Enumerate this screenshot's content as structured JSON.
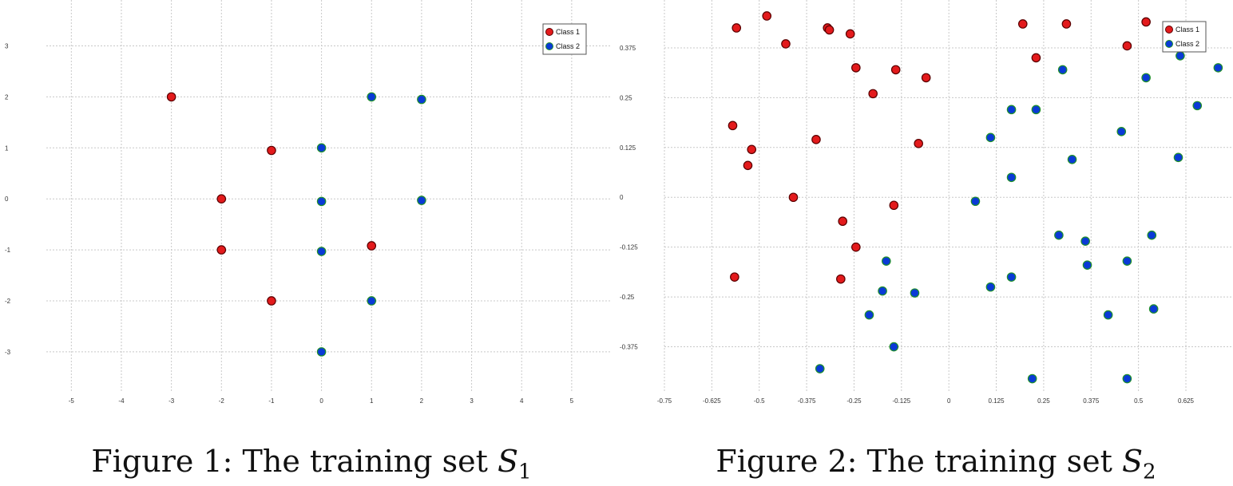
{
  "chart_data": [
    {
      "type": "scatter",
      "title": "",
      "xlabel": "",
      "ylabel": "",
      "xlim": [
        -5.5,
        5.8
      ],
      "ylim": [
        -3.8,
        3.9
      ],
      "xticks": [
        -5,
        -4,
        -3,
        -2,
        -1,
        0,
        1,
        2,
        3,
        4,
        5
      ],
      "yticks": [
        -3,
        -2,
        -1,
        0,
        1,
        2,
        3
      ],
      "xtick_labels": [
        "-5",
        "-4",
        "-3",
        "-2",
        "-1",
        "0",
        "1",
        "2",
        "3",
        "4",
        "5"
      ],
      "ytick_labels": [
        "-3",
        "-2",
        "-1",
        "0",
        "1",
        "2",
        "3"
      ],
      "grid": true,
      "legend_position": "top-right",
      "series": [
        {
          "name": "Class 1",
          "color": "#e31a1c",
          "points": [
            [
              -3,
              2
            ],
            [
              -1,
              0.95
            ],
            [
              -2,
              0
            ],
            [
              -2,
              -1
            ],
            [
              1,
              -0.92
            ],
            [
              -1,
              -2
            ]
          ]
        },
        {
          "name": "Class 2",
          "color": "#0a3ad6",
          "points": [
            [
              1,
              2
            ],
            [
              2,
              1.95
            ],
            [
              0,
              1
            ],
            [
              0,
              -0.05
            ],
            [
              2,
              -0.03
            ],
            [
              0,
              -1.03
            ],
            [
              1,
              -2
            ],
            [
              0,
              -3
            ]
          ]
        }
      ]
    },
    {
      "type": "scatter",
      "title": "",
      "xlabel": "",
      "ylabel": "",
      "xlim": [
        -0.75,
        0.745
      ],
      "ylim": [
        -0.49,
        0.495
      ],
      "xticks": [
        -0.75,
        -0.625,
        -0.5,
        -0.375,
        -0.25,
        -0.125,
        0,
        0.125,
        0.25,
        0.375,
        0.5,
        0.625
      ],
      "yticks": [
        -0.375,
        -0.25,
        -0.125,
        0,
        0.125,
        0.25,
        0.375
      ],
      "xtick_labels": [
        "-0.75",
        "-0.625",
        "-0.5",
        "-0.375",
        "-0.25",
        "-0.125",
        "0",
        "0.125",
        "0.25",
        "0.375",
        "0.5",
        "0.625"
      ],
      "ytick_labels": [
        "-0.375",
        "-0.25",
        "-0.125",
        "0",
        "0.125",
        "0.25",
        "0.375"
      ],
      "grid": true,
      "legend_position": "top-right",
      "series": [
        {
          "name": "Class 1",
          "color": "#e31a1c",
          "points": [
            [
              -0.56,
              0.425
            ],
            [
              -0.48,
              0.455
            ],
            [
              -0.43,
              0.385
            ],
            [
              -0.32,
              0.425
            ],
            [
              -0.315,
              0.42
            ],
            [
              -0.26,
              0.41
            ],
            [
              -0.245,
              0.325
            ],
            [
              -0.2,
              0.26
            ],
            [
              -0.14,
              0.32
            ],
            [
              -0.06,
              0.3
            ],
            [
              -0.57,
              0.18
            ],
            [
              -0.52,
              0.12
            ],
            [
              -0.53,
              0.08
            ],
            [
              -0.35,
              0.145
            ],
            [
              -0.08,
              0.135
            ],
            [
              -0.41,
              0
            ],
            [
              -0.28,
              -0.06
            ],
            [
              -0.145,
              -0.02
            ],
            [
              -0.245,
              -0.125
            ],
            [
              -0.565,
              -0.2
            ],
            [
              -0.285,
              -0.205
            ],
            [
              0.195,
              0.435
            ],
            [
              0.23,
              0.35
            ],
            [
              0.31,
              0.435
            ],
            [
              0.47,
              0.38
            ],
            [
              0.52,
              0.44
            ]
          ]
        },
        {
          "name": "Class 2",
          "color": "#0a3ad6",
          "points": [
            [
              0.61,
              0.355
            ],
            [
              0.71,
              0.325
            ],
            [
              0.3,
              0.32
            ],
            [
              0.52,
              0.3
            ],
            [
              0.655,
              0.23
            ],
            [
              0.165,
              0.22
            ],
            [
              0.23,
              0.22
            ],
            [
              0.455,
              0.165
            ],
            [
              0.11,
              0.15
            ],
            [
              0.325,
              0.095
            ],
            [
              0.605,
              0.1
            ],
            [
              0.165,
              0.05
            ],
            [
              0.07,
              -0.01
            ],
            [
              0.29,
              -0.095
            ],
            [
              0.36,
              -0.11
            ],
            [
              0.535,
              -0.095
            ],
            [
              -0.165,
              -0.16
            ],
            [
              0.165,
              -0.2
            ],
            [
              0.365,
              -0.17
            ],
            [
              0.47,
              -0.16
            ],
            [
              -0.175,
              -0.235
            ],
            [
              -0.09,
              -0.24
            ],
            [
              0.11,
              -0.225
            ],
            [
              -0.21,
              -0.295
            ],
            [
              0.42,
              -0.295
            ],
            [
              0.54,
              -0.28
            ],
            [
              -0.145,
              -0.375
            ],
            [
              -0.34,
              -0.43
            ],
            [
              0.22,
              -0.455
            ],
            [
              0.47,
              -0.455
            ]
          ]
        }
      ]
    }
  ],
  "captions": {
    "fig1": {
      "prefix": "Figure 1: The training set ",
      "var": "S",
      "sub": "1"
    },
    "fig2": {
      "prefix": "Figure 2: The training set ",
      "var": "S",
      "sub": "2"
    }
  }
}
